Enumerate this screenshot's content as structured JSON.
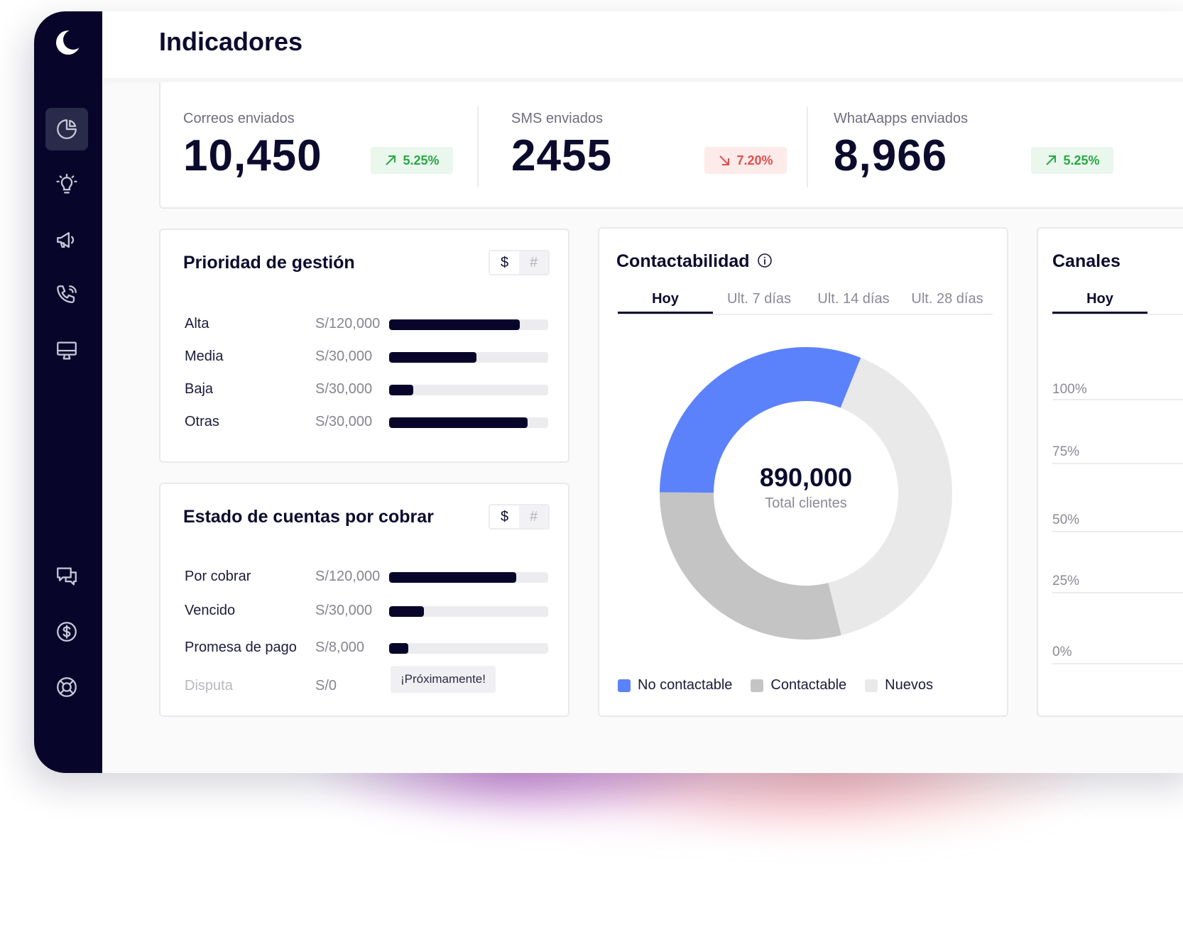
{
  "page": {
    "title": "Indicadores"
  },
  "kpis": [
    {
      "label": "Correos enviados",
      "value": "10,450",
      "change": "5.25%",
      "direction": "up"
    },
    {
      "label": "SMS enviados",
      "value": "2455",
      "change": "7.20%",
      "direction": "down"
    },
    {
      "label": "WhatAapps enviados",
      "value": "8,966",
      "change": "5.25%",
      "direction": "up"
    }
  ],
  "priority": {
    "title": "Prioridad de gestión",
    "toggle": {
      "currency": "$",
      "count": "#"
    },
    "rows": [
      {
        "label": "Alta",
        "amount": "S/120,000",
        "fraction": 0.82
      },
      {
        "label": "Media",
        "amount": "S/30,000",
        "fraction": 0.55
      },
      {
        "label": "Baja",
        "amount": "S/30,000",
        "fraction": 0.15
      },
      {
        "label": "Otras",
        "amount": "S/30,000",
        "fraction": 0.87
      }
    ]
  },
  "accounts": {
    "title": "Estado de cuentas por cobrar",
    "toggle": {
      "currency": "$",
      "count": "#"
    },
    "rows": [
      {
        "label": "Por cobrar",
        "amount": "S/120,000",
        "fraction": 0.8
      },
      {
        "label": "Vencido",
        "amount": "S/30,000",
        "fraction": 0.22
      },
      {
        "label": "Promesa de pago",
        "amount": "S/8,000",
        "fraction": 0.12
      },
      {
        "label": "Disputa",
        "amount": "S/0",
        "status": "¡Próximamente!"
      }
    ]
  },
  "contactability": {
    "title": "Contactabilidad",
    "tabs": [
      "Hoy",
      "Ult. 7 días",
      "Ult. 14 días",
      "Ult. 28 días"
    ],
    "active_tab": "Hoy",
    "center_value": "890,000",
    "center_label": "Total clientes",
    "legend": [
      "No contactable",
      "Contactable",
      "Nuevos"
    ]
  },
  "chart_data": {
    "type": "pie",
    "categories": [
      "No contactable",
      "Contactable",
      "Nuevos"
    ],
    "values": [
      31,
      29,
      40
    ],
    "colors": [
      "#5b82fb",
      "#c4c4c4",
      "#e9e9e9"
    ]
  },
  "channels": {
    "title": "Canales",
    "tab": "Hoy",
    "y_ticks": [
      "100%",
      "75%",
      "50%",
      "25%",
      "0%"
    ]
  },
  "icons": {
    "logo": "moon-logo",
    "nav": [
      "pie-chart-icon",
      "lightbulb-icon",
      "megaphone-icon",
      "phone-icon",
      "monitor-icon",
      "chat-icon",
      "dollar-icon",
      "lifebuoy-icon"
    ]
  }
}
